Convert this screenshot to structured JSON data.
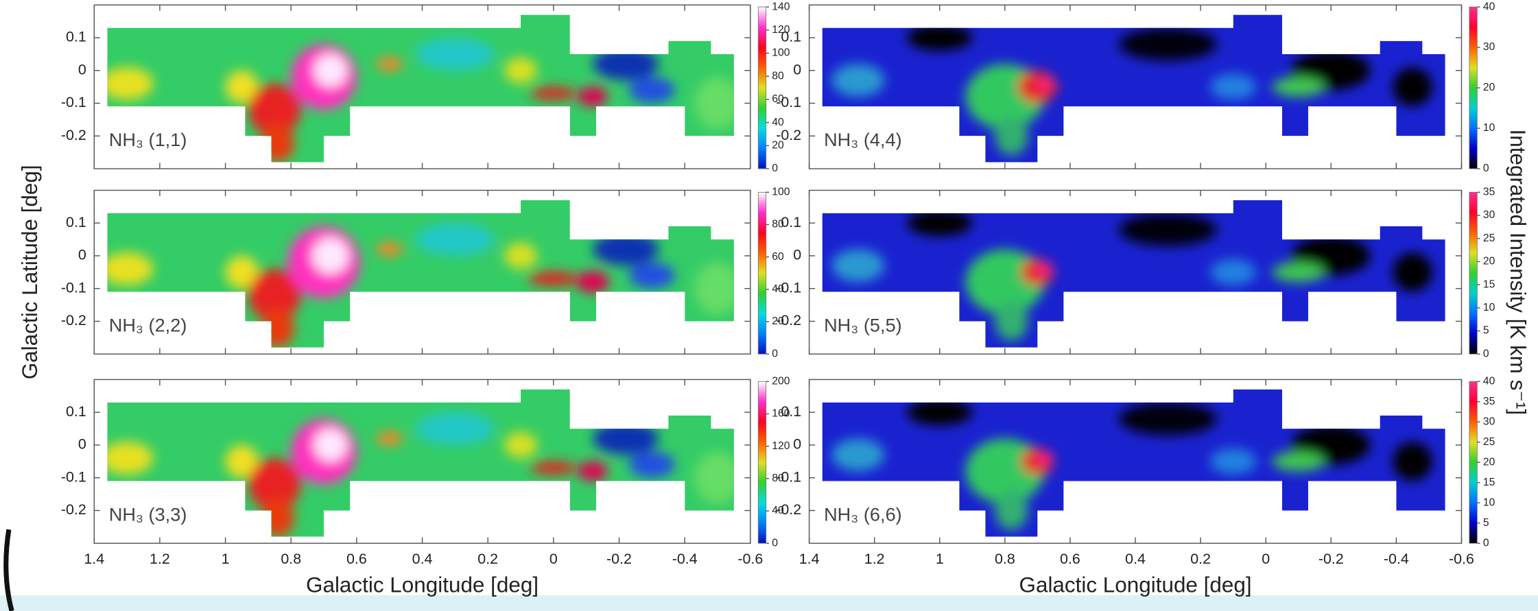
{
  "chart_data": [
    {
      "type": "heatmap",
      "label": "NH₃ (1,1)",
      "xlim": [
        1.4,
        -0.6
      ],
      "xticks": [
        1.4,
        1.2,
        1,
        0.8,
        0.6,
        0.4,
        0.2,
        0,
        -0.2,
        -0.4,
        -0.6
      ],
      "ylim": [
        -0.3,
        0.2
      ],
      "yticks": [
        0.1,
        0,
        -0.1,
        -0.2
      ],
      "clim": [
        0,
        140
      ],
      "cticks": [
        0,
        20,
        40,
        60,
        80,
        100,
        120,
        140
      ],
      "colormap": [
        "#0010c0",
        "#0080ff",
        "#00e0e0",
        "#30d030",
        "#e0e020",
        "#ff6000",
        "#ff0020",
        "#ff30d0",
        "#ffffff"
      ]
    },
    {
      "type": "heatmap",
      "label": "NH₃ (2,2)",
      "ylabel": "Galactic Latitude [deg]",
      "xlim": [
        1.4,
        -0.6
      ],
      "xticks": [
        1.4,
        1.2,
        1,
        0.8,
        0.6,
        0.4,
        0.2,
        0,
        -0.2,
        -0.4,
        -0.6
      ],
      "ylim": [
        -0.3,
        0.2
      ],
      "yticks": [
        0.1,
        0,
        -0.1,
        -0.2
      ],
      "clim": [
        0,
        100
      ],
      "cticks": [
        0,
        20,
        40,
        60,
        80,
        100
      ],
      "colormap": [
        "#0010c0",
        "#0080ff",
        "#00e0e0",
        "#30d030",
        "#e0e020",
        "#ff6000",
        "#ff0020",
        "#ff30d0",
        "#ffffff"
      ]
    },
    {
      "type": "heatmap",
      "label": "NH₃ (3,3)",
      "xlabel": "Galactic Longitude [deg]",
      "xlim": [
        1.4,
        -0.6
      ],
      "xticks": [
        1.4,
        1.2,
        1,
        0.8,
        0.6,
        0.4,
        0.2,
        0,
        -0.2,
        -0.4,
        -0.6
      ],
      "ylim": [
        -0.3,
        0.2
      ],
      "yticks": [
        0.1,
        0,
        -0.1,
        -0.2
      ],
      "clim": [
        0,
        200
      ],
      "cticks": [
        0,
        40,
        80,
        120,
        160,
        200
      ],
      "colormap": [
        "#0010c0",
        "#0080ff",
        "#00e0e0",
        "#30d030",
        "#e0e020",
        "#ff6000",
        "#ff0020",
        "#ff30d0",
        "#ffffff"
      ]
    },
    {
      "type": "heatmap",
      "label": "NH₃ (4,4)",
      "xlim": [
        1.4,
        -0.6
      ],
      "xticks": [
        1.4,
        1.2,
        1,
        0.8,
        0.6,
        0.4,
        0.2,
        0,
        -0.2,
        -0.4,
        -0.6
      ],
      "ylim": [
        -0.3,
        0.2
      ],
      "yticks": [
        0.1,
        0,
        -0.1,
        -0.2
      ],
      "clim": [
        0,
        40
      ],
      "cticks": [
        0,
        10,
        20,
        30,
        40
      ],
      "colormap": [
        "#000000",
        "#0000c8",
        "#0070ff",
        "#00d0d0",
        "#30d030",
        "#e0e020",
        "#ff6000",
        "#ff0030",
        "#ff3090"
      ]
    },
    {
      "type": "heatmap",
      "label": "NH₃ (5,5)",
      "colorbar_label": "Integrated Intensity [K km s⁻¹]",
      "xlim": [
        1.4,
        -0.6
      ],
      "xticks": [
        1.4,
        1.2,
        1,
        0.8,
        0.6,
        0.4,
        0.2,
        0,
        -0.2,
        -0.4,
        -0.6
      ],
      "ylim": [
        -0.3,
        0.2
      ],
      "yticks": [
        0.1,
        0,
        -0.1,
        -0.2
      ],
      "clim": [
        0,
        35
      ],
      "cticks": [
        0,
        5,
        10,
        15,
        20,
        25,
        30,
        35
      ],
      "colormap": [
        "#000000",
        "#0000c8",
        "#0070ff",
        "#00d0d0",
        "#30d030",
        "#e0e020",
        "#ff6000",
        "#ff0030",
        "#ff3090"
      ]
    },
    {
      "type": "heatmap",
      "label": "NH₃ (6,6)",
      "xlabel": "Galactic Longitude [deg]",
      "xlim": [
        1.4,
        -0.6
      ],
      "xticks": [
        1.4,
        1.2,
        1,
        0.8,
        0.6,
        0.4,
        0.2,
        0,
        -0.2,
        -0.4,
        -0.6
      ],
      "ylim": [
        -0.3,
        0.2
      ],
      "yticks": [
        0.1,
        0,
        -0.1,
        -0.2
      ],
      "clim": [
        0,
        40
      ],
      "cticks": [
        0,
        5,
        10,
        15,
        20,
        25,
        30,
        35,
        40
      ],
      "colormap": [
        "#000000",
        "#0000c8",
        "#0070ff",
        "#00d0d0",
        "#30d030",
        "#e0e020",
        "#ff6000",
        "#ff0030",
        "#ff3090"
      ]
    }
  ]
}
